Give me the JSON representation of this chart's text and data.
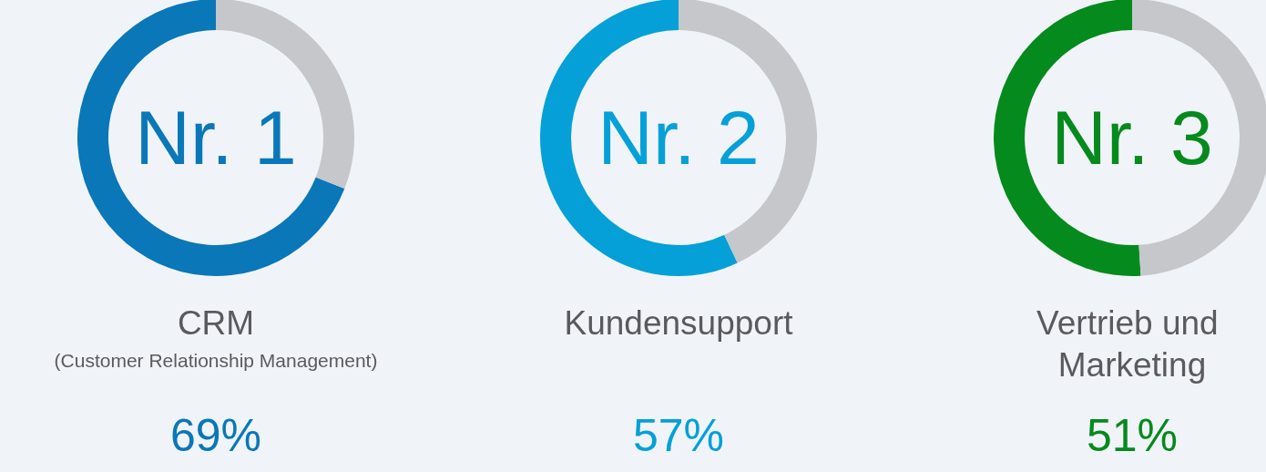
{
  "chart_data": [
    {
      "type": "donut",
      "title": "CRM",
      "subtitle": "(Customer Relationship Management)",
      "annotations": [
        "Nr. 1"
      ],
      "categories": [
        null,
        null
      ],
      "values": [
        69,
        31
      ],
      "colors": [
        "#0a77b8",
        "#c5c7cb"
      ],
      "value_labels": [
        "69%",
        null
      ]
    },
    {
      "type": "donut",
      "title": "Kundensupport",
      "annotations": [
        "Nr. 2"
      ],
      "categories": [
        null,
        null
      ],
      "values": [
        57,
        43
      ],
      "colors": [
        "#05a0d8",
        "#c5c7cb"
      ],
      "value_labels": [
        "57%",
        null
      ]
    },
    {
      "type": "donut",
      "title": "Vertrieb und Marketing",
      "annotations": [
        "Nr. 3"
      ],
      "categories": [
        null,
        null
      ],
      "values": [
        51,
        49
      ],
      "colors": [
        "#058a1d",
        "#c5c7cb"
      ],
      "value_labels": [
        "51%",
        null
      ]
    }
  ]
}
